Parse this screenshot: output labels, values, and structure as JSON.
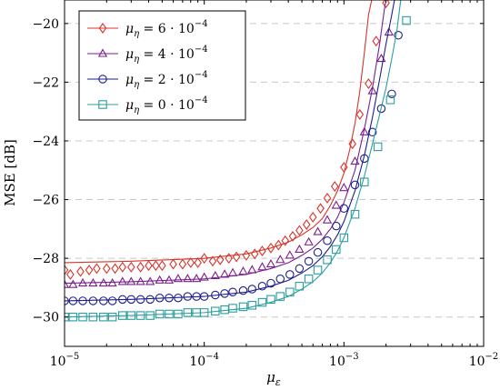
{
  "chart_data": {
    "type": "line",
    "xlabel": "με",
    "ylabel": "MSE [dB]",
    "xscale": "log",
    "xlim": [
      1e-05,
      0.01
    ],
    "ylim": [
      -31,
      -19.2
    ],
    "grid": "y-dashed",
    "legend_position": "top-left",
    "x_ticks": [
      1e-05,
      0.0001,
      0.001,
      0.01
    ],
    "x_tick_labels": [
      {
        "base": "10",
        "exp": "−5"
      },
      {
        "base": "10",
        "exp": "−4"
      },
      {
        "base": "10",
        "exp": "−3"
      },
      {
        "base": "10",
        "exp": "−2"
      }
    ],
    "y_ticks": [
      -30,
      -28,
      -26,
      -24,
      -22,
      -20
    ],
    "y_tick_labels": [
      "−30",
      "−28",
      "−26",
      "−24",
      "−22",
      "−20"
    ],
    "series": [
      {
        "name": "μη = 6 · 10−4",
        "label_html": [
          "μ",
          "η",
          " = 6 · 10",
          "−4"
        ],
        "color": "#d6342a",
        "marker": "diamond",
        "line": [
          [
            1e-05,
            -28.15
          ],
          [
            3e-05,
            -28.1
          ],
          [
            0.0001,
            -28.0
          ],
          [
            0.0002,
            -27.85
          ],
          [
            0.0003,
            -27.65
          ],
          [
            0.0004,
            -27.45
          ],
          [
            0.0005,
            -27.2
          ],
          [
            0.0006,
            -26.95
          ],
          [
            0.0007,
            -26.65
          ],
          [
            0.0008,
            -26.2
          ],
          [
            0.0009,
            -25.7
          ],
          [
            0.001,
            -25.1
          ],
          [
            0.0011,
            -24.3
          ],
          [
            0.0012,
            -23.4
          ],
          [
            0.0013,
            -22.3
          ],
          [
            0.0014,
            -21.0
          ],
          [
            0.0015,
            -19.7
          ],
          [
            0.00158,
            -19.2
          ]
        ],
        "points": [
          [
            1e-05,
            -28.4
          ],
          [
            1.1e-05,
            -28.55
          ],
          [
            1.3e-05,
            -28.45
          ],
          [
            1.5e-05,
            -28.4
          ],
          [
            1.7e-05,
            -28.35
          ],
          [
            2e-05,
            -28.35
          ],
          [
            2.3e-05,
            -28.35
          ],
          [
            2.6e-05,
            -28.3
          ],
          [
            3e-05,
            -28.3
          ],
          [
            3.5e-05,
            -28.3
          ],
          [
            4e-05,
            -28.25
          ],
          [
            4.5e-05,
            -28.25
          ],
          [
            5e-05,
            -28.25
          ],
          [
            6e-05,
            -28.2
          ],
          [
            7e-05,
            -28.2
          ],
          [
            8e-05,
            -28.15
          ],
          [
            9e-05,
            -28.15
          ],
          [
            0.0001,
            -28.0
          ],
          [
            0.000115,
            -28.1
          ],
          [
            0.00013,
            -28.05
          ],
          [
            0.00015,
            -28.0
          ],
          [
            0.00017,
            -27.95
          ],
          [
            0.0002,
            -27.9
          ],
          [
            0.00023,
            -27.85
          ],
          [
            0.00026,
            -27.75
          ],
          [
            0.0003,
            -27.65
          ],
          [
            0.00034,
            -27.55
          ],
          [
            0.00038,
            -27.4
          ],
          [
            0.00043,
            -27.25
          ],
          [
            0.00048,
            -27.05
          ],
          [
            0.00054,
            -26.85
          ],
          [
            0.0006,
            -26.6
          ],
          [
            0.00068,
            -26.3
          ],
          [
            0.00076,
            -25.95
          ],
          [
            0.00086,
            -25.55
          ],
          [
            0.001,
            -24.9
          ],
          [
            0.00115,
            -24.1
          ],
          [
            0.0013,
            -23.1
          ],
          [
            0.0015,
            -22.05
          ],
          [
            0.0017,
            -20.6
          ],
          [
            0.002,
            -19.3
          ]
        ]
      },
      {
        "name": "μη = 4 · 10−4",
        "label_html": [
          "μ",
          "η",
          " = 4 · 10",
          "−4"
        ],
        "color": "#7a1f8c",
        "marker": "triangle",
        "line": [
          [
            1e-05,
            -28.85
          ],
          [
            3e-05,
            -28.8
          ],
          [
            0.0001,
            -28.7
          ],
          [
            0.0002,
            -28.55
          ],
          [
            0.0003,
            -28.35
          ],
          [
            0.0004,
            -28.15
          ],
          [
            0.0005,
            -27.9
          ],
          [
            0.0006,
            -27.65
          ],
          [
            0.0007,
            -27.35
          ],
          [
            0.0008,
            -27.0
          ],
          [
            0.0009,
            -26.6
          ],
          [
            0.001,
            -26.1
          ],
          [
            0.0012,
            -25.0
          ],
          [
            0.0014,
            -23.6
          ],
          [
            0.0016,
            -22.2
          ],
          [
            0.0018,
            -20.7
          ],
          [
            0.00195,
            -19.5
          ],
          [
            0.002,
            -19.2
          ]
        ],
        "points": [
          [
            1e-05,
            -28.9
          ],
          [
            1.15e-05,
            -28.9
          ],
          [
            1.35e-05,
            -28.85
          ],
          [
            1.6e-05,
            -28.85
          ],
          [
            1.9e-05,
            -28.85
          ],
          [
            2.2e-05,
            -28.85
          ],
          [
            2.6e-05,
            -28.8
          ],
          [
            3e-05,
            -28.8
          ],
          [
            3.5e-05,
            -28.8
          ],
          [
            4.1e-05,
            -28.8
          ],
          [
            4.8e-05,
            -28.75
          ],
          [
            5.6e-05,
            -28.75
          ],
          [
            6.5e-05,
            -28.7
          ],
          [
            7.6e-05,
            -28.7
          ],
          [
            8.8e-05,
            -28.7
          ],
          [
            0.0001,
            -28.65
          ],
          [
            0.00012,
            -28.6
          ],
          [
            0.00014,
            -28.55
          ],
          [
            0.00016,
            -28.5
          ],
          [
            0.00019,
            -28.45
          ],
          [
            0.00022,
            -28.4
          ],
          [
            0.00026,
            -28.3
          ],
          [
            0.0003,
            -28.2
          ],
          [
            0.00035,
            -28.05
          ],
          [
            0.00041,
            -27.9
          ],
          [
            0.00048,
            -27.7
          ],
          [
            0.00056,
            -27.45
          ],
          [
            0.00065,
            -27.1
          ],
          [
            0.00076,
            -26.7
          ],
          [
            0.00088,
            -26.2
          ],
          [
            0.001,
            -25.6
          ],
          [
            0.0012,
            -24.7
          ],
          [
            0.0014,
            -23.7
          ],
          [
            0.0016,
            -22.3
          ],
          [
            0.00185,
            -21.2
          ],
          [
            0.0021,
            -20.3
          ]
        ]
      },
      {
        "name": "μη = 2 · 10−4",
        "label_html": [
          "μ",
          "η",
          " = 2 · 10",
          "−4"
        ],
        "color": "#1e1e8c",
        "marker": "circle",
        "line": [
          [
            1e-05,
            -29.45
          ],
          [
            3e-05,
            -29.4
          ],
          [
            0.0001,
            -29.3
          ],
          [
            0.0002,
            -29.15
          ],
          [
            0.0003,
            -28.95
          ],
          [
            0.0004,
            -28.75
          ],
          [
            0.0005,
            -28.5
          ],
          [
            0.0006,
            -28.25
          ],
          [
            0.0007,
            -27.95
          ],
          [
            0.0008,
            -27.6
          ],
          [
            0.0009,
            -27.2
          ],
          [
            0.001,
            -26.75
          ],
          [
            0.0012,
            -25.7
          ],
          [
            0.0014,
            -24.5
          ],
          [
            0.0016,
            -23.2
          ],
          [
            0.0018,
            -21.9
          ],
          [
            0.002,
            -20.7
          ],
          [
            0.0022,
            -19.7
          ],
          [
            0.0023,
            -19.2
          ]
        ],
        "points": [
          [
            1e-05,
            -29.45
          ],
          [
            1.15e-05,
            -29.45
          ],
          [
            1.35e-05,
            -29.45
          ],
          [
            1.6e-05,
            -29.45
          ],
          [
            1.9e-05,
            -29.45
          ],
          [
            2.2e-05,
            -29.45
          ],
          [
            2.6e-05,
            -29.4
          ],
          [
            3e-05,
            -29.4
          ],
          [
            3.5e-05,
            -29.4
          ],
          [
            4.1e-05,
            -29.4
          ],
          [
            4.8e-05,
            -29.35
          ],
          [
            5.6e-05,
            -29.35
          ],
          [
            6.5e-05,
            -29.35
          ],
          [
            7.6e-05,
            -29.3
          ],
          [
            8.8e-05,
            -29.3
          ],
          [
            0.0001,
            -29.3
          ],
          [
            0.00012,
            -29.25
          ],
          [
            0.00014,
            -29.2
          ],
          [
            0.00016,
            -29.15
          ],
          [
            0.00019,
            -29.1
          ],
          [
            0.00022,
            -29.05
          ],
          [
            0.00026,
            -28.95
          ],
          [
            0.0003,
            -28.85
          ],
          [
            0.00035,
            -28.7
          ],
          [
            0.00041,
            -28.55
          ],
          [
            0.00048,
            -28.35
          ],
          [
            0.00056,
            -28.1
          ],
          [
            0.00065,
            -27.8
          ],
          [
            0.00076,
            -27.4
          ],
          [
            0.00088,
            -26.9
          ],
          [
            0.001,
            -26.3
          ],
          [
            0.0012,
            -25.5
          ],
          [
            0.0014,
            -24.6
          ],
          [
            0.0016,
            -23.7
          ],
          [
            0.00185,
            -22.9
          ],
          [
            0.0022,
            -22.4
          ],
          [
            0.00245,
            -20.4
          ]
        ]
      },
      {
        "name": "μη = 0 · 10−4",
        "label_html": [
          "μ",
          "η",
          " = 0 · 10",
          "−4"
        ],
        "color": "#2a9d9d",
        "marker": "square",
        "line": [
          [
            1e-05,
            -30.0
          ],
          [
            3e-05,
            -29.95
          ],
          [
            0.0001,
            -29.85
          ],
          [
            0.0002,
            -29.7
          ],
          [
            0.0003,
            -29.5
          ],
          [
            0.0004,
            -29.3
          ],
          [
            0.0005,
            -29.05
          ],
          [
            0.0006,
            -28.8
          ],
          [
            0.0007,
            -28.5
          ],
          [
            0.0008,
            -28.15
          ],
          [
            0.0009,
            -27.75
          ],
          [
            0.001,
            -27.3
          ],
          [
            0.0012,
            -26.3
          ],
          [
            0.0014,
            -25.2
          ],
          [
            0.0016,
            -24.1
          ],
          [
            0.0018,
            -23.1
          ],
          [
            0.002,
            -22.2
          ],
          [
            0.0022,
            -21.2
          ],
          [
            0.0024,
            -20.2
          ],
          [
            0.00255,
            -19.2
          ]
        ],
        "points": [
          [
            1e-05,
            -30.0
          ],
          [
            1.15e-05,
            -30.0
          ],
          [
            1.35e-05,
            -30.0
          ],
          [
            1.6e-05,
            -30.0
          ],
          [
            1.9e-05,
            -30.0
          ],
          [
            2.2e-05,
            -30.0
          ],
          [
            2.6e-05,
            -29.95
          ],
          [
            3e-05,
            -29.95
          ],
          [
            3.5e-05,
            -29.95
          ],
          [
            4.1e-05,
            -29.95
          ],
          [
            4.8e-05,
            -29.9
          ],
          [
            5.6e-05,
            -29.9
          ],
          [
            6.5e-05,
            -29.9
          ],
          [
            7.6e-05,
            -29.85
          ],
          [
            8.8e-05,
            -29.85
          ],
          [
            0.0001,
            -29.85
          ],
          [
            0.00012,
            -29.8
          ],
          [
            0.00014,
            -29.75
          ],
          [
            0.00016,
            -29.7
          ],
          [
            0.00019,
            -29.65
          ],
          [
            0.00022,
            -29.6
          ],
          [
            0.00026,
            -29.5
          ],
          [
            0.0003,
            -29.4
          ],
          [
            0.00035,
            -29.3
          ],
          [
            0.00041,
            -29.15
          ],
          [
            0.00048,
            -28.95
          ],
          [
            0.00056,
            -28.7
          ],
          [
            0.00065,
            -28.4
          ],
          [
            0.00076,
            -28.05
          ],
          [
            0.00088,
            -27.7
          ],
          [
            0.001,
            -27.3
          ],
          [
            0.0012,
            -26.5
          ],
          [
            0.0014,
            -25.4
          ],
          [
            0.00175,
            -24.2
          ],
          [
            0.00215,
            -22.6
          ],
          [
            0.0028,
            -19.9
          ]
        ]
      }
    ]
  }
}
